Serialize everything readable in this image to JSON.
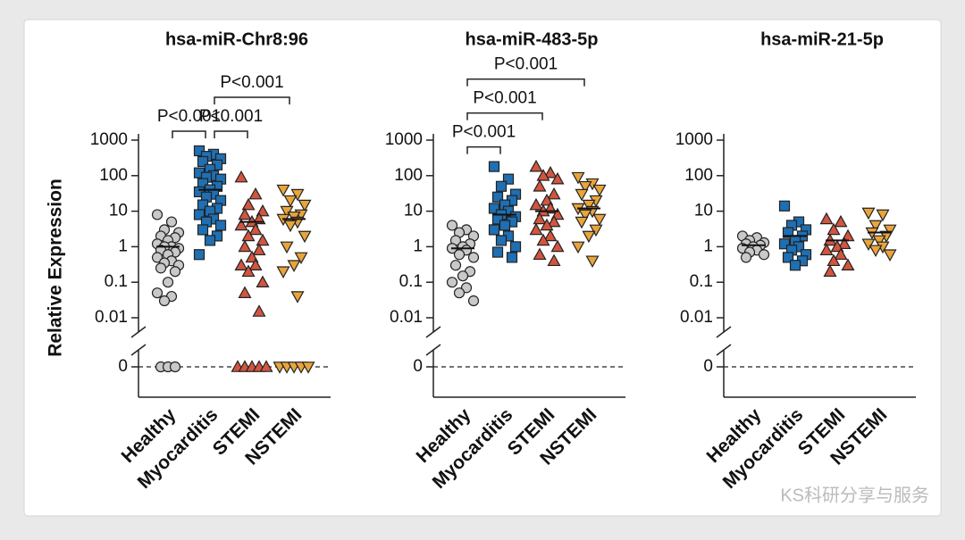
{
  "chart_data": [
    {
      "type": "strip",
      "title": "hsa-miR-Chr8:96",
      "ylabel": "Relative Expression",
      "log_scale": true,
      "categories": [
        "Healthy",
        "Myocarditis",
        "STEMI",
        "NSTEMI"
      ],
      "markers": [
        "circle",
        "square",
        "triangle-up",
        "triangle-down"
      ],
      "colors": [
        "#c9c9c9",
        "#1f6fb2",
        "#d2553f",
        "#e9a43b"
      ],
      "ylim": [
        0.01,
        1000
      ],
      "yticks": [
        0.01,
        0.1,
        1,
        10,
        100,
        1000
      ],
      "zero_tick": 0,
      "values": [
        [
          8,
          5,
          3,
          2.5,
          2,
          1.8,
          1.5,
          1.2,
          1,
          1,
          0.9,
          0.8,
          0.7,
          0.6,
          0.5,
          0.4,
          0.35,
          0.3,
          0.25,
          0.2,
          0.1,
          0.05,
          0.04,
          0.03,
          0,
          0,
          0
        ],
        [
          500,
          400,
          350,
          300,
          250,
          200,
          150,
          120,
          100,
          90,
          80,
          60,
          50,
          40,
          35,
          30,
          25,
          20,
          15,
          12,
          10,
          8,
          6,
          5,
          4,
          3,
          2,
          1.5,
          0.6
        ],
        [
          90,
          30,
          15,
          10,
          8,
          6,
          5,
          4,
          3,
          2,
          1.5,
          1,
          0.8,
          0.5,
          0.3,
          0.3,
          0.2,
          0.1,
          0.05,
          0.015,
          0,
          0,
          0,
          0,
          0
        ],
        [
          40,
          30,
          20,
          15,
          10,
          8,
          7,
          6,
          5,
          4,
          2,
          1,
          0.5,
          0.3,
          0.2,
          0.04,
          0,
          0,
          0,
          0,
          0
        ]
      ],
      "means": [
        1,
        40,
        5,
        6
      ],
      "annotations": [
        {
          "text": "P<0.001",
          "from": 0,
          "to": 1
        },
        {
          "text": "P<0.001",
          "from": 1,
          "to": 2
        },
        {
          "text": "P<0.001",
          "from": 1,
          "to": 3
        }
      ]
    },
    {
      "type": "strip",
      "title": "hsa-miR-483-5p",
      "log_scale": true,
      "categories": [
        "Healthy",
        "Myocarditis",
        "STEMI",
        "NSTEMI"
      ],
      "markers": [
        "circle",
        "square",
        "triangle-up",
        "triangle-down"
      ],
      "colors": [
        "#c9c9c9",
        "#1f6fb2",
        "#d2553f",
        "#e9a43b"
      ],
      "ylim": [
        0.01,
        1000
      ],
      "yticks": [
        0.01,
        0.1,
        1,
        10,
        100,
        1000
      ],
      "zero_tick": 0,
      "values": [
        [
          4,
          3,
          2.5,
          2,
          1.5,
          1.2,
          1,
          0.9,
          0.8,
          0.6,
          0.5,
          0.3,
          0.2,
          0.15,
          0.1,
          0.07,
          0.05,
          0.03
        ],
        [
          180,
          80,
          50,
          30,
          25,
          20,
          15,
          12,
          10,
          8,
          7,
          6,
          5,
          4,
          3,
          2,
          1.5,
          1,
          0.7,
          0.5
        ],
        [
          180,
          120,
          100,
          80,
          50,
          30,
          20,
          15,
          12,
          10,
          8,
          6,
          5,
          4,
          3,
          2,
          1.5,
          1,
          0.6,
          0.4
        ],
        [
          90,
          60,
          50,
          40,
          30,
          20,
          15,
          12,
          10,
          8,
          6,
          5,
          3,
          2,
          1,
          0.4
        ]
      ],
      "means": [
        0.9,
        8,
        10,
        12
      ],
      "annotations": [
        {
          "text": "P<0.001",
          "from": 0,
          "to": 1
        },
        {
          "text": "P<0.001",
          "from": 0,
          "to": 2
        },
        {
          "text": "P<0.001",
          "from": 0,
          "to": 3
        }
      ]
    },
    {
      "type": "strip",
      "title": "hsa-miR-21-5p",
      "log_scale": true,
      "categories": [
        "Healthy",
        "Myocarditis",
        "STEMI",
        "NSTEMI"
      ],
      "markers": [
        "circle",
        "square",
        "triangle-up",
        "triangle-down"
      ],
      "colors": [
        "#c9c9c9",
        "#1f6fb2",
        "#d2553f",
        "#e9a43b"
      ],
      "ylim": [
        0.01,
        1000
      ],
      "yticks": [
        0.01,
        0.1,
        1,
        10,
        100,
        1000
      ],
      "zero_tick": 0,
      "values": [
        [
          2,
          1.8,
          1.5,
          1.3,
          1.2,
          1.1,
          1,
          0.9,
          0.8,
          0.7,
          0.6,
          0.5
        ],
        [
          14,
          5,
          4,
          3,
          2.5,
          2,
          1.5,
          1.2,
          1,
          0.8,
          0.6,
          0.5,
          0.4,
          0.3
        ],
        [
          6,
          5,
          3,
          2,
          1.5,
          1.2,
          1,
          0.8,
          0.6,
          0.4,
          0.3,
          0.2
        ],
        [
          9,
          8,
          4,
          3,
          2.5,
          2,
          1.5,
          1.2,
          1,
          0.8,
          0.6
        ]
      ],
      "means": [
        1.1,
        2,
        1.5,
        2.5
      ],
      "annotations": []
    }
  ],
  "watermark": "KS科研分享与服务"
}
